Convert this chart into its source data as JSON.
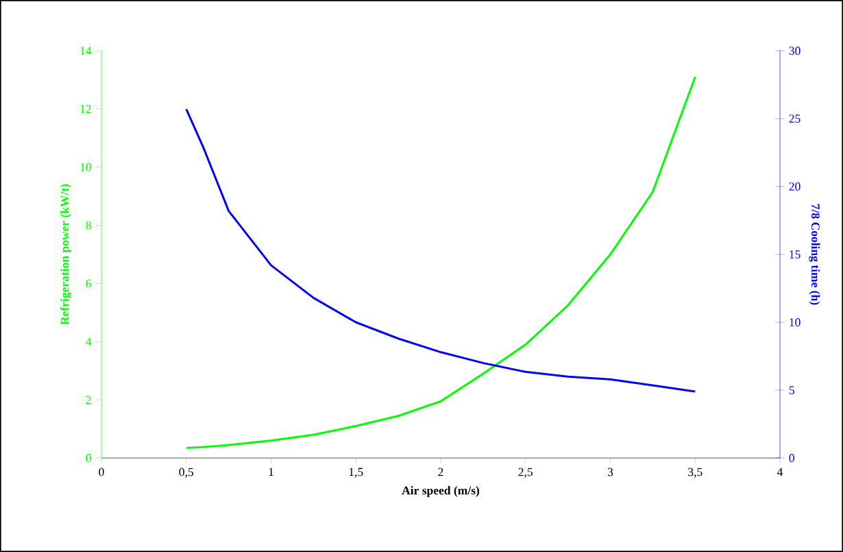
{
  "chart_data": {
    "type": "line",
    "xlabel": "Air speed (m/s)",
    "ylabel": "Refrigeration power (kW/t)",
    "y2label": "7/8 Cooling time (h)",
    "x": [
      0.5,
      0.6,
      0.75,
      1.0,
      1.25,
      1.5,
      1.75,
      2.0,
      2.25,
      2.5,
      2.75,
      3.0,
      3.25,
      3.5
    ],
    "series": [
      {
        "color": "#00ff00",
        "values": [
          0.35,
          0.38,
          0.45,
          0.6,
          0.8,
          1.1,
          1.45,
          1.95,
          2.9,
          3.9,
          5.25,
          7.0,
          9.15,
          13.1
        ]
      },
      {
        "color": "#0000ff",
        "axis": "y2",
        "values": [
          25.7,
          22.9,
          18.2,
          14.2,
          11.8,
          10.0,
          8.8,
          7.8,
          7.0,
          6.35,
          6.0,
          5.8,
          5.35,
          4.9
        ]
      }
    ],
    "xlim": [
      0,
      4
    ],
    "xticks": [
      0,
      {
        "value": 0.5,
        "label": "0,5"
      },
      1,
      {
        "value": 1.5,
        "label": "1,5"
      },
      2,
      {
        "value": 2.5,
        "label": "2,5"
      },
      3,
      {
        "value": 3.5,
        "label": "3,5"
      },
      4
    ],
    "ylim": [
      0,
      14
    ],
    "yticks": [
      0,
      2,
      4,
      6,
      8,
      10,
      12,
      14
    ],
    "y2lim": [
      0,
      30
    ],
    "y2ticks": [
      0,
      5,
      10,
      15,
      20,
      25,
      30
    ],
    "grid": false,
    "line_style": "solid",
    "marker": "none"
  }
}
